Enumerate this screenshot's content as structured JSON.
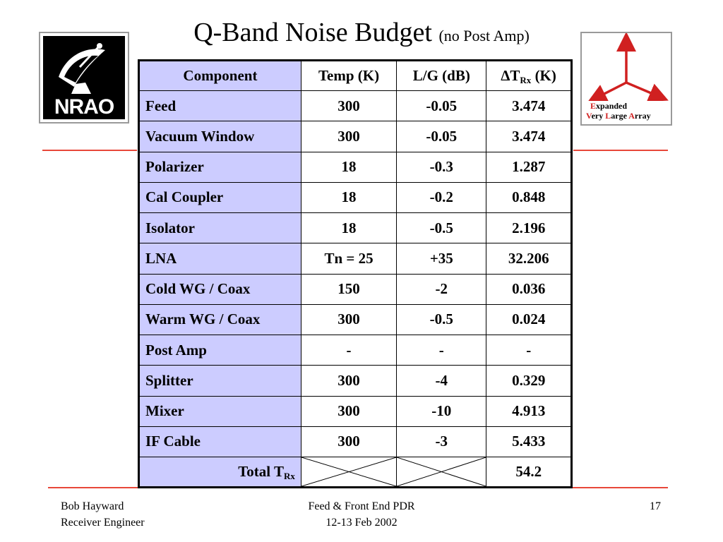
{
  "slide": {
    "title_main": "Q-Band Noise Budget",
    "title_sub": "(no Post Amp)",
    "page_number": "17"
  },
  "logos": {
    "nrao": {
      "text": "NRAO",
      "icon": "nrao-dish-icon"
    },
    "evla": {
      "icon": "evla-array-arms-icon",
      "line1_cap": "E",
      "line1_rest": "xpanded",
      "line2_cap1": "V",
      "line2_rest1": "ery ",
      "line2_cap2": "L",
      "line2_rest2": "arge ",
      "line2_cap3": "A",
      "line2_rest3": "rray",
      "accent_color": "#d02020"
    }
  },
  "table": {
    "headers": {
      "component": "Component",
      "temp": "Temp (K)",
      "lg": "L/G (dB)",
      "delta": "∆",
      "t": "T",
      "rx": "Rx",
      "unit": " (K)"
    },
    "rows": [
      {
        "component": "Feed",
        "temp": "300",
        "lg": "-0.05",
        "dt": "3.474"
      },
      {
        "component": "Vacuum Window",
        "temp": "300",
        "lg": "-0.05",
        "dt": "3.474"
      },
      {
        "component": "Polarizer",
        "temp": "18",
        "lg": "-0.3",
        "dt": "1.287"
      },
      {
        "component": "Cal Coupler",
        "temp": "18",
        "lg": "-0.2",
        "dt": "0.848"
      },
      {
        "component": "Isolator",
        "temp": "18",
        "lg": "-0.5",
        "dt": "2.196"
      },
      {
        "component": "LNA",
        "temp": "Tn = 25",
        "lg": "+35",
        "dt": "32.206"
      },
      {
        "component": "Cold WG / Coax",
        "temp": "150",
        "lg": "-2",
        "dt": "0.036"
      },
      {
        "component": "Warm WG / Coax",
        "temp": "300",
        "lg": "-0.5",
        "dt": "0.024"
      },
      {
        "component": "Post Amp",
        "temp": "-",
        "lg": "-",
        "dt": "-"
      },
      {
        "component": "Splitter",
        "temp": "300",
        "lg": "-4",
        "dt": "0.329"
      },
      {
        "component": "Mixer",
        "temp": "300",
        "lg": "-10",
        "dt": "4.913"
      },
      {
        "component": "IF Cable",
        "temp": "300",
        "lg": "-3",
        "dt": "5.433"
      }
    ],
    "total": {
      "label": "Total T",
      "sub": "Rx",
      "value": "54.2"
    },
    "header_color": "#ccccff"
  },
  "footer": {
    "left_line1": "Bob Hayward",
    "left_line2": "Receiver Engineer",
    "center_line1": "Feed & Front End PDR",
    "center_line2": "12-13 Feb 2002"
  },
  "colors": {
    "rule": "#e8473a",
    "component_fill": "#ccccff"
  }
}
